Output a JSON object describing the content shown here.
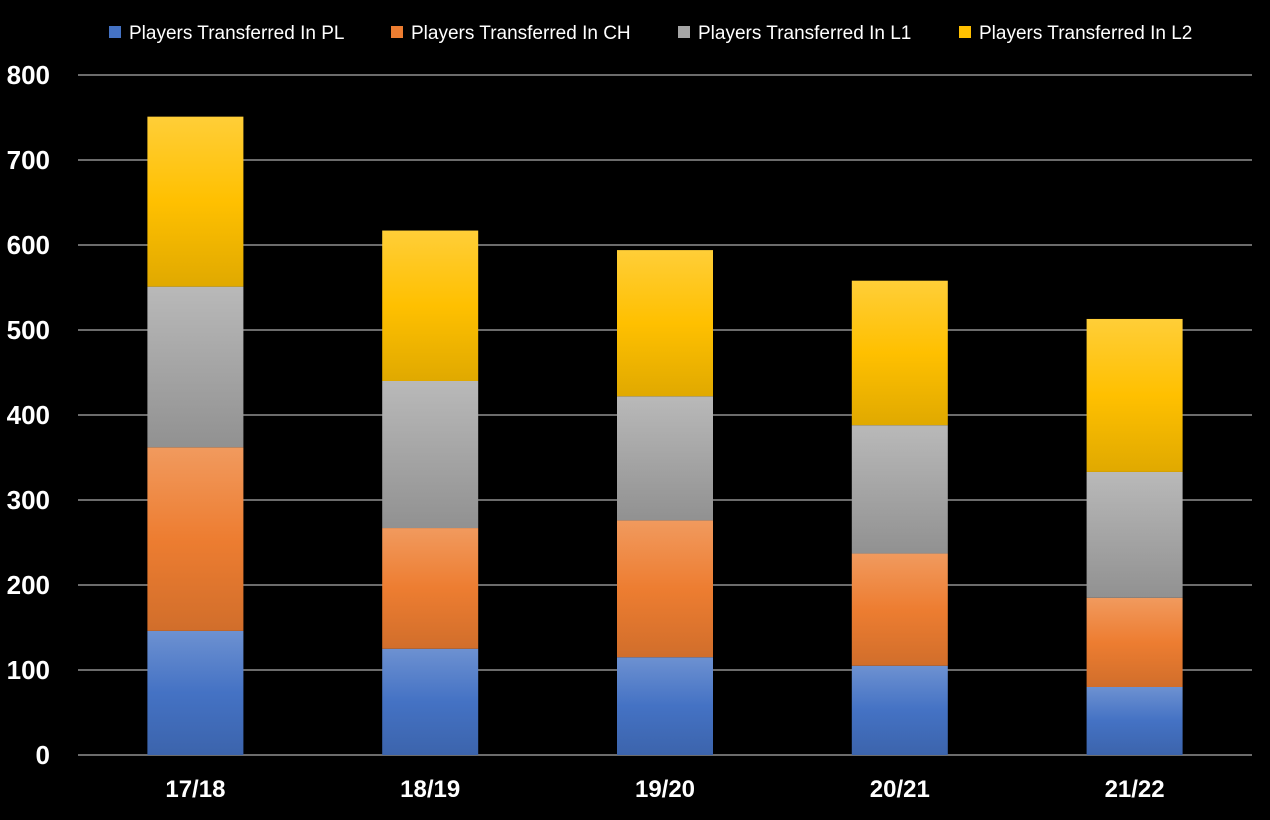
{
  "chart_data": {
    "type": "bar",
    "stacked": true,
    "categories": [
      "17/18",
      "18/19",
      "19/20",
      "20/21",
      "21/22"
    ],
    "series": [
      {
        "name": "Players Transferred In PL",
        "color": "#4472C4",
        "values": [
          146,
          125,
          115,
          105,
          80
        ]
      },
      {
        "name": "Players Transferred In CH",
        "color": "#ED7D31",
        "values": [
          216,
          142,
          161,
          132,
          105
        ]
      },
      {
        "name": "Players Transferred In L1",
        "color": "#A5A5A5",
        "values": [
          189,
          173,
          146,
          151,
          148
        ]
      },
      {
        "name": "Players Transferred In L2",
        "color": "#FFC000",
        "values": [
          200,
          177,
          172,
          170,
          180
        ]
      }
    ],
    "ylim": [
      0,
      800
    ],
    "yticks": [
      "0",
      "100",
      "200",
      "300",
      "400",
      "500",
      "600",
      "700",
      "800"
    ],
    "grid": true,
    "legend": "top",
    "title": "",
    "xlabel": "",
    "ylabel": ""
  }
}
